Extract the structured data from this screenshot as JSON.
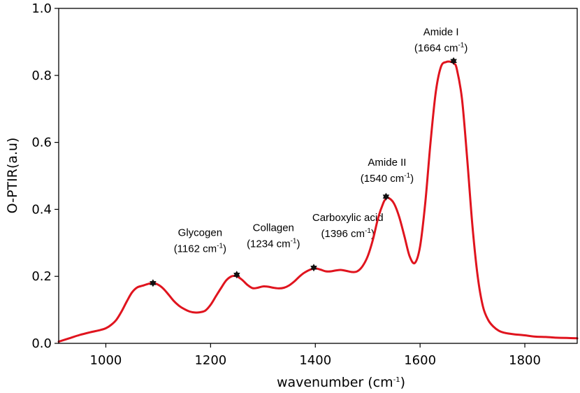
{
  "chart_data": {
    "type": "line",
    "title": "",
    "xlabel": "wavenumber",
    "xlabel_unit": "cm",
    "xlabel_unit_sup": "-1",
    "ylabel": "O-PTIR(a.u)",
    "xlim": [
      910,
      1900
    ],
    "ylim": [
      0.0,
      1.0
    ],
    "xticks": [
      1000,
      1200,
      1400,
      1600,
      1800
    ],
    "xtick_labels": [
      "1000",
      "1200",
      "1400",
      "1600",
      "1800"
    ],
    "yticks": [
      0.0,
      0.2,
      0.4,
      0.6,
      0.8,
      1.0
    ],
    "ytick_labels": [
      "0.0",
      "0.2",
      "0.4",
      "0.6",
      "0.8",
      "1.0"
    ],
    "grid": false,
    "line_color": "#e0141e",
    "marker_color": "#111111",
    "series": [
      {
        "x": [
          910,
          930,
          950,
          970,
          990,
          1000,
          1010,
          1020,
          1030,
          1040,
          1050,
          1060,
          1070,
          1080,
          1090,
          1100,
          1110,
          1120,
          1130,
          1140,
          1150,
          1160,
          1170,
          1180,
          1190,
          1200,
          1210,
          1220,
          1230,
          1240,
          1250,
          1260,
          1270,
          1280,
          1290,
          1300,
          1310,
          1320,
          1330,
          1340,
          1350,
          1360,
          1370,
          1380,
          1390,
          1400,
          1410,
          1420,
          1430,
          1440,
          1450,
          1460,
          1470,
          1480,
          1490,
          1500,
          1510,
          1520,
          1530,
          1535,
          1540,
          1550,
          1560,
          1570,
          1580,
          1590,
          1600,
          1610,
          1620,
          1630,
          1640,
          1650,
          1660,
          1665,
          1670,
          1680,
          1690,
          1700,
          1710,
          1720,
          1730,
          1740,
          1750,
          1760,
          1770,
          1780,
          1800,
          1820,
          1840,
          1860,
          1880,
          1900
        ],
        "y": [
          0.005,
          0.015,
          0.025,
          0.033,
          0.04,
          0.045,
          0.055,
          0.07,
          0.095,
          0.125,
          0.152,
          0.167,
          0.172,
          0.177,
          0.18,
          0.175,
          0.163,
          0.145,
          0.126,
          0.112,
          0.102,
          0.095,
          0.092,
          0.093,
          0.098,
          0.115,
          0.14,
          0.165,
          0.188,
          0.2,
          0.2,
          0.19,
          0.175,
          0.165,
          0.166,
          0.17,
          0.169,
          0.166,
          0.164,
          0.166,
          0.173,
          0.185,
          0.2,
          0.212,
          0.22,
          0.224,
          0.22,
          0.215,
          0.215,
          0.218,
          0.219,
          0.216,
          0.213,
          0.215,
          0.23,
          0.26,
          0.31,
          0.375,
          0.42,
          0.432,
          0.434,
          0.418,
          0.378,
          0.32,
          0.26,
          0.24,
          0.29,
          0.42,
          0.6,
          0.75,
          0.826,
          0.84,
          0.84,
          0.835,
          0.82,
          0.73,
          0.55,
          0.35,
          0.2,
          0.11,
          0.07,
          0.05,
          0.038,
          0.032,
          0.029,
          0.027,
          0.024,
          0.02,
          0.019,
          0.017,
          0.016,
          0.015
        ]
      }
    ],
    "peaks": [
      {
        "name": "Glycogen",
        "wavenumber": 1162,
        "x": 1090,
        "y": 0.18
      },
      {
        "name": "Collagen",
        "wavenumber": 1234,
        "x": 1250,
        "y": 0.205
      },
      {
        "name": "Carboxylic acid",
        "wavenumber": 1396,
        "x": 1397,
        "y": 0.226
      },
      {
        "name": "Amide II",
        "wavenumber": 1540,
        "x": 1535,
        "y": 0.438
      },
      {
        "name": "Amide I",
        "wavenumber": 1664,
        "x": 1664,
        "y": 0.843
      }
    ],
    "annotations": [
      {
        "line1": "Glycogen",
        "line2": "(1162 cm",
        "sup": "-1",
        "tail": ")",
        "ax": 1180,
        "ay": 0.32
      },
      {
        "line1": "Collagen",
        "line2": "(1234 cm",
        "sup": "-1",
        "tail": ")",
        "ax": 1320,
        "ay": 0.335
      },
      {
        "line1": "Carboxylic acid",
        "line2": "(1396 cm",
        "sup": "-1",
        "tail": ")",
        "ax": 1462,
        "ay": 0.365
      },
      {
        "line1": "Amide II",
        "line2": "(1540 cm",
        "sup": "-1",
        "tail": ")",
        "ax": 1537,
        "ay": 0.53
      },
      {
        "line1": "Amide I",
        "line2": "(1664 cm",
        "sup": "-1",
        "tail": ")",
        "ax": 1640,
        "ay": 0.92
      }
    ]
  }
}
